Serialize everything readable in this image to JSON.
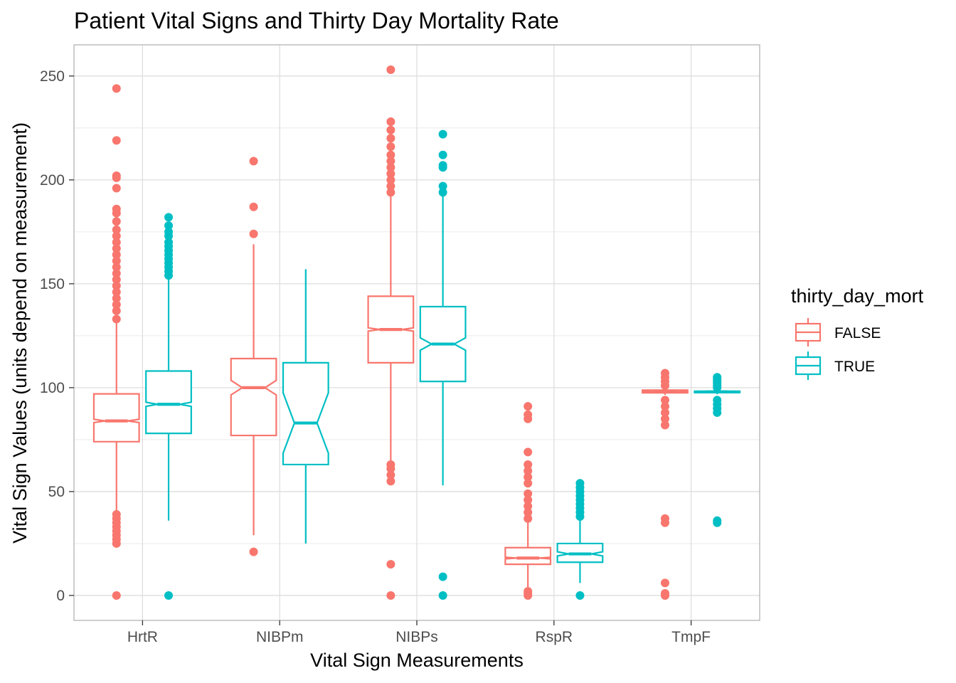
{
  "chart_data": {
    "type": "boxplot",
    "title": "Patient Vital Signs and Thirty Day Mortality Rate",
    "xlabel": "Vital Sign Measurements",
    "ylabel": "Vital Sign Values (units depend on measurement)",
    "ylim": [
      -12,
      265
    ],
    "yticks": [
      0,
      50,
      100,
      150,
      200,
      250
    ],
    "grid": true,
    "notched": true,
    "categories": [
      "HrtR",
      "NIBPm",
      "NIBPs",
      "RspR",
      "TmpF"
    ],
    "legend": {
      "title": "thirty_day_mort",
      "position": "right",
      "entries": [
        {
          "label": "FALSE",
          "color": "#F8766D"
        },
        {
          "label": "TRUE",
          "color": "#00BFC4"
        }
      ]
    },
    "series": [
      {
        "name": "FALSE",
        "color": "#F8766D",
        "boxes": [
          {
            "category": "HrtR",
            "whisker_low": 40,
            "q1": 74,
            "median": 84,
            "q3": 97,
            "whisker_high": 131,
            "notch_low": 83.2,
            "notch_high": 84.8,
            "outliers": [
              0,
              25,
              27,
              29,
              31,
              33,
              35,
              37,
              39,
              133,
              137,
              140,
              143,
              146,
              149,
              152,
              155,
              158,
              161,
              164,
              167,
              170,
              173,
              176,
              180,
              184,
              186,
              196,
              201,
              202,
              219,
              244
            ]
          },
          {
            "category": "NIBPm",
            "whisker_low": 29,
            "q1": 77,
            "median": 100,
            "q3": 114,
            "whisker_high": 169,
            "notch_low": 96.5,
            "notch_high": 103.5,
            "outliers": [
              21,
              174,
              187,
              209
            ]
          },
          {
            "category": "NIBPs",
            "whisker_low": 65,
            "q1": 112,
            "median": 128,
            "q3": 144,
            "whisker_high": 192,
            "notch_low": 127.2,
            "notch_high": 128.8,
            "outliers": [
              0,
              15,
              55,
              58,
              61,
              63,
              194,
              197,
              200,
              203,
              206,
              209,
              212,
              216,
              220,
              224,
              228,
              253
            ]
          },
          {
            "category": "RspR",
            "whisker_low": 4,
            "q1": 15,
            "median": 18,
            "q3": 23,
            "whisker_high": 35,
            "notch_low": 17.6,
            "notch_high": 18.4,
            "outliers": [
              0,
              1,
              2,
              37,
              40,
              43,
              46,
              49,
              54,
              57,
              60,
              63,
              69,
              85,
              87,
              91
            ]
          },
          {
            "category": "TmpF",
            "whisker_low": 96.5,
            "q1": 97.5,
            "median": 98,
            "q3": 98.8,
            "whisker_high": 100.5,
            "notch_low": 97.9,
            "notch_high": 98.1,
            "outliers": [
              0,
              1,
              6,
              35,
              37,
              82,
              85,
              88,
              91,
              94,
              101,
              103,
              105,
              107
            ]
          }
        ]
      },
      {
        "name": "TRUE",
        "color": "#00BFC4",
        "boxes": [
          {
            "category": "HrtR",
            "whisker_low": 36,
            "q1": 78,
            "median": 92,
            "q3": 108,
            "whisker_high": 153,
            "notch_low": 91,
            "notch_high": 93,
            "outliers": [
              0,
              154,
              156,
              158,
              160,
              162,
              164,
              166,
              168,
              170,
              173,
              175,
              178,
              182
            ]
          },
          {
            "category": "NIBPm",
            "whisker_low": 25,
            "q1": 63,
            "median": 83,
            "q3": 112,
            "whisker_high": 157,
            "notch_low": 68.5,
            "notch_high": 97.5,
            "outliers": []
          },
          {
            "category": "NIBPs",
            "whisker_low": 53,
            "q1": 103,
            "median": 121,
            "q3": 139,
            "whisker_high": 193,
            "notch_low": 118,
            "notch_high": 124,
            "outliers": [
              0,
              9,
              194,
              197,
              206,
              207,
              212,
              222
            ]
          },
          {
            "category": "RspR",
            "whisker_low": 6,
            "q1": 16,
            "median": 20,
            "q3": 25,
            "whisker_high": 36,
            "notch_low": 19,
            "notch_high": 21,
            "outliers": [
              0,
              38,
              40,
              42,
              44,
              46,
              48,
              50,
              52,
              54
            ]
          },
          {
            "category": "TmpF",
            "whisker_low": 96.8,
            "q1": 97.6,
            "median": 98,
            "q3": 98.3,
            "whisker_high": 99.2,
            "notch_low": 97.9,
            "notch_high": 98.1,
            "outliers": [
              35,
              36,
              88,
              90,
              92,
              94,
              100,
              101,
              102,
              103,
              104,
              105
            ]
          }
        ]
      }
    ]
  }
}
